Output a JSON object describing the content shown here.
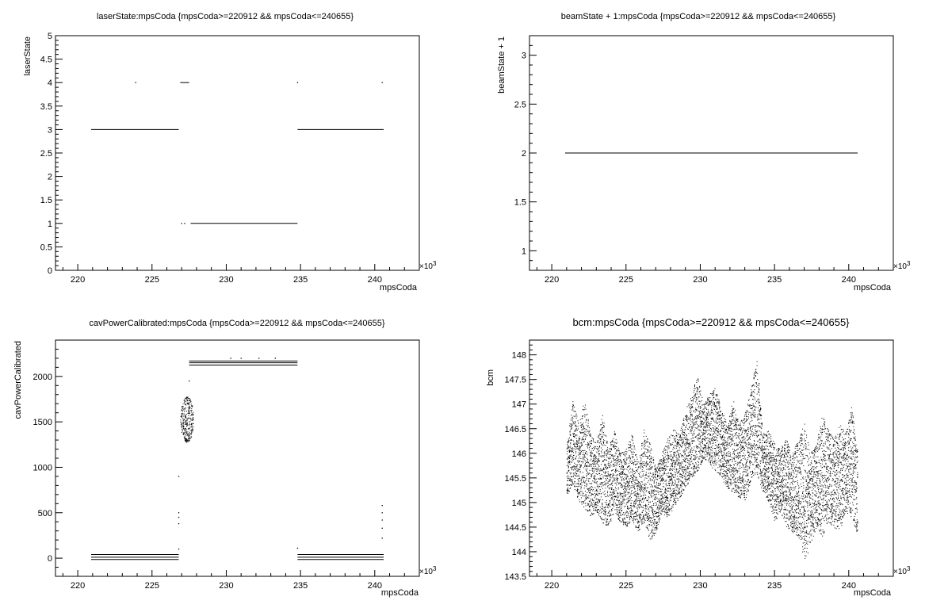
{
  "chart_data": [
    {
      "type": "scatter",
      "title": "laserState:mpsCoda {mpsCoda>=220912 && mpsCoda<=240655}",
      "xlabel": "mpsCoda",
      "ylabel": "laserState",
      "x_exponent": "×10",
      "x_exponent_power": "3",
      "xlim": [
        218.5,
        243.0
      ],
      "ylim": [
        0,
        5
      ],
      "x_ticks": [
        220,
        225,
        230,
        235,
        240
      ],
      "x_tick_labels": [
        "220",
        "225",
        "230",
        "235",
        "240"
      ],
      "y_ticks": [
        0,
        0.5,
        1,
        1.5,
        2,
        2.5,
        3,
        3.5,
        4,
        4.5,
        5
      ],
      "y_tick_labels": [
        "0",
        "0.5",
        "1",
        "1.5",
        "2",
        "2.5",
        "3",
        "3.5",
        "4",
        "4.5",
        "5"
      ],
      "segments": [
        {
          "x": [
            220.9,
            226.8
          ],
          "y": 3
        },
        {
          "x": [
            226.9,
            227.5
          ],
          "y": 4
        },
        {
          "x": [
            227.6,
            234.8
          ],
          "y": 1
        },
        {
          "x": [
            234.8,
            240.6
          ],
          "y": 3
        }
      ],
      "points": [
        {
          "x": 223.9,
          "y": 4
        },
        {
          "x": 234.8,
          "y": 4
        },
        {
          "x": 240.5,
          "y": 4
        },
        {
          "x": 227.0,
          "y": 1
        },
        {
          "x": 227.2,
          "y": 1
        }
      ]
    },
    {
      "type": "scatter",
      "title": "beamState + 1:mpsCoda {mpsCoda>=220912 && mpsCoda<=240655}",
      "xlabel": "mpsCoda",
      "ylabel": "beamState + 1",
      "x_exponent": "×10",
      "x_exponent_power": "3",
      "xlim": [
        218.5,
        243.0
      ],
      "ylim": [
        0.8,
        3.2
      ],
      "x_ticks": [
        220,
        225,
        230,
        235,
        240
      ],
      "x_tick_labels": [
        "220",
        "225",
        "230",
        "235",
        "240"
      ],
      "y_ticks": [
        1,
        1.5,
        2,
        2.5,
        3
      ],
      "y_tick_labels": [
        "1",
        "1.5",
        "2",
        "2.5",
        "3"
      ],
      "segments": [
        {
          "x": [
            220.9,
            240.6
          ],
          "y": 2
        }
      ],
      "points": []
    },
    {
      "type": "scatter",
      "title": "cavPowerCalibrated:mpsCoda {mpsCoda>=220912 && mpsCoda<=240655}",
      "xlabel": "mpsCoda",
      "ylabel": "cavPowerCalibrated",
      "x_exponent": "×10",
      "x_exponent_power": "3",
      "xlim": [
        218.5,
        243.0
      ],
      "ylim": [
        -200,
        2400
      ],
      "x_ticks": [
        220,
        225,
        230,
        235,
        240
      ],
      "x_tick_labels": [
        "220",
        "225",
        "230",
        "235",
        "240"
      ],
      "y_ticks": [
        0,
        500,
        1000,
        1500,
        2000
      ],
      "y_tick_labels": [
        "0",
        "500",
        "1000",
        "1500",
        "2000"
      ],
      "segments": [
        {
          "x": [
            220.9,
            226.8
          ],
          "y": 40
        },
        {
          "x": [
            220.9,
            226.8
          ],
          "y": 10
        },
        {
          "x": [
            220.9,
            226.8
          ],
          "y": -15
        },
        {
          "x": [
            227.5,
            234.8
          ],
          "y": 2170
        },
        {
          "x": [
            227.5,
            234.8
          ],
          "y": 2150
        },
        {
          "x": [
            227.5,
            234.8
          ],
          "y": 2125
        },
        {
          "x": [
            234.8,
            240.6
          ],
          "y": 40
        },
        {
          "x": [
            234.8,
            240.6
          ],
          "y": 10
        },
        {
          "x": [
            234.8,
            240.6
          ],
          "y": -15
        }
      ],
      "clusters": [
        {
          "x": [
            226.9,
            227.8
          ],
          "y": [
            1280,
            1780
          ],
          "shape": "ellipse"
        }
      ],
      "points": [
        {
          "x": 226.8,
          "y": 900
        },
        {
          "x": 226.8,
          "y": 500
        },
        {
          "x": 226.8,
          "y": 450
        },
        {
          "x": 226.8,
          "y": 380
        },
        {
          "x": 226.8,
          "y": 100
        },
        {
          "x": 227.5,
          "y": 1950
        },
        {
          "x": 234.8,
          "y": 110
        },
        {
          "x": 240.5,
          "y": 580
        },
        {
          "x": 240.5,
          "y": 500
        },
        {
          "x": 240.5,
          "y": 420
        },
        {
          "x": 240.5,
          "y": 330
        },
        {
          "x": 240.5,
          "y": 220
        },
        {
          "x": 230.3,
          "y": 2200
        },
        {
          "x": 231.0,
          "y": 2200
        },
        {
          "x": 232.2,
          "y": 2200
        },
        {
          "x": 233.3,
          "y": 2200
        }
      ]
    },
    {
      "type": "scatter",
      "title": "bcm:mpsCoda {mpsCoda>=220912 && mpsCoda<=240655}",
      "xlabel": "mpsCoda",
      "ylabel": "bcm",
      "x_exponent": "×10",
      "x_exponent_power": "3",
      "xlim": [
        218.5,
        243.0
      ],
      "ylim": [
        143.5,
        148.3
      ],
      "x_ticks": [
        220,
        225,
        230,
        235,
        240
      ],
      "x_tick_labels": [
        "220",
        "225",
        "230",
        "235",
        "240"
      ],
      "y_ticks": [
        143.5,
        144,
        144.5,
        145,
        145.5,
        146,
        146.5,
        147,
        147.5,
        148
      ],
      "y_tick_labels": [
        "143.5",
        "144",
        "144.5",
        "145",
        "145.5",
        "146",
        "146.5",
        "147",
        "147.5",
        "148"
      ],
      "band": {
        "x": [
          221.0,
          221.4,
          221.8,
          222.2,
          222.6,
          223.0,
          223.4,
          223.8,
          224.2,
          224.6,
          225.0,
          225.4,
          225.8,
          226.2,
          226.6,
          227.0,
          227.4,
          227.8,
          228.2,
          228.6,
          229.0,
          229.4,
          229.8,
          230.2,
          230.6,
          231.0,
          231.4,
          231.8,
          232.2,
          232.6,
          233.0,
          233.4,
          233.8,
          234.2,
          234.6,
          235.0,
          235.4,
          235.8,
          236.2,
          236.6,
          237.0,
          237.4,
          237.8,
          238.2,
          238.6,
          239.0,
          239.4,
          239.8,
          240.2,
          240.6
        ],
        "low": [
          145.1,
          145.4,
          145.0,
          144.9,
          144.7,
          144.8,
          144.6,
          144.5,
          144.8,
          144.6,
          144.5,
          144.6,
          144.4,
          144.6,
          144.2,
          144.4,
          144.8,
          144.7,
          144.9,
          145.1,
          145.3,
          145.5,
          145.6,
          145.9,
          145.8,
          145.6,
          145.5,
          145.3,
          145.2,
          145.1,
          145.0,
          145.4,
          145.6,
          145.2,
          145.0,
          144.6,
          144.8,
          144.5,
          144.4,
          144.3,
          143.8,
          144.1,
          144.5,
          144.3,
          144.6,
          144.5,
          144.4,
          144.8,
          144.7,
          144.3
        ],
        "high": [
          146.2,
          147.1,
          146.6,
          147.1,
          146.4,
          146.2,
          146.8,
          146.1,
          146.5,
          146.0,
          146.1,
          146.4,
          145.8,
          146.5,
          146.2,
          145.7,
          146.0,
          146.3,
          146.5,
          146.4,
          146.9,
          147.2,
          147.6,
          147.0,
          147.2,
          147.4,
          146.9,
          146.6,
          147.1,
          146.6,
          146.8,
          147.3,
          148.0,
          146.4,
          146.5,
          146.2,
          146.1,
          146.3,
          146.0,
          146.3,
          146.6,
          146.0,
          146.2,
          146.8,
          146.5,
          146.3,
          146.6,
          146.4,
          147.0,
          146.0
        ]
      },
      "points": []
    }
  ]
}
